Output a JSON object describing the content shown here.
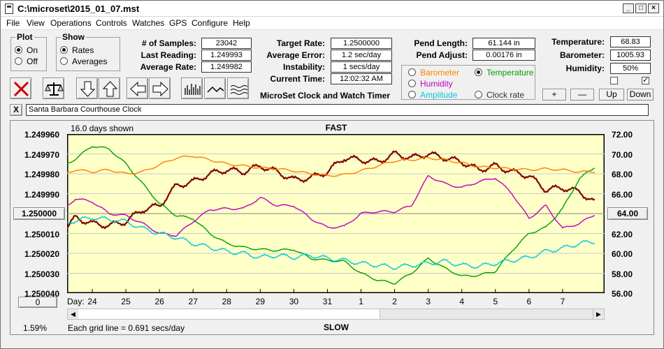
{
  "window": {
    "title": "C:\\microset\\2015_01_07.mst"
  },
  "menu": [
    "File",
    "View",
    "Operations",
    "Controls",
    "Watches",
    "GPS",
    "Configure",
    "Help"
  ],
  "plot_group": {
    "title": "Plot",
    "on": "On",
    "off": "Off",
    "selected": "On"
  },
  "show_group": {
    "title": "Show",
    "rates": "Rates",
    "averages": "Averages",
    "selected": "Rates"
  },
  "stats": {
    "samples_label": "# of Samples:",
    "samples": "23042",
    "last_label": "Last Reading:",
    "last": "1.249993",
    "avg_label": "Average Rate:",
    "avg": "1.249982",
    "target_label": "Target Rate:",
    "target": "1.2500000",
    "err_label": "Average Error:",
    "err": "1.2 sec/day",
    "inst_label": "Instability:",
    "inst": "1 secs/day",
    "time_label": "Current Time:",
    "time": "12:02:32 AM",
    "pend_len_label": "Pend Length:",
    "pend_len": "61.144 in",
    "pend_adj_label": "Pend Adjust:",
    "pend_adj": "0.00176 in",
    "temp_label": "Temperature:",
    "temp": "68.83",
    "baro_label": "Barometer:",
    "baro": "1005.93",
    "hum_label": "Humidity:",
    "hum": "50%"
  },
  "caption": "MicroSet Clock and Watch Timer",
  "sensors": {
    "barometer": "Barometer",
    "temperature": "Temperature",
    "humidity": "Humidity",
    "amplitude": "Amplitude",
    "clock_rate": "Clock rate",
    "selected": "Temperature",
    "barometer_color": "#ff8000",
    "temperature_color": "#00a000",
    "humidity_color": "#c000c0",
    "amplitude_color": "#00c8e0"
  },
  "adjust_buttons": {
    "plus": "+",
    "minus": "—",
    "up": "Up",
    "down": "Down"
  },
  "checkboxes": {
    "left": false,
    "right": true,
    "right_mark": "✓"
  },
  "clock": {
    "close": "X",
    "name": "Santa Barbara Courthouse Clock"
  },
  "chart_data": {
    "type": "line",
    "top_label": "FAST",
    "bottom_label": "SLOW",
    "days_shown": "16.0 days shown",
    "grid_note": "Each grid line = 0.691 secs/day",
    "percent": "1.59%",
    "left_button": "0",
    "center_left": "1.250000",
    "right_button": "64.00",
    "xlabel": "Day:",
    "days": [
      "24",
      "25",
      "26",
      "27",
      "28",
      "29",
      "30",
      "31",
      "1",
      "2",
      "3",
      "4",
      "5",
      "6",
      "7"
    ],
    "left_ticks": [
      "1.249960",
      "1.249970",
      "1.249980",
      "1.249990",
      "1.250000",
      "1.250010",
      "1.250020",
      "1.250030",
      "1.250040"
    ],
    "right_ticks": [
      "72.00",
      "70.00",
      "68.00",
      "66.00",
      "64.00",
      "62.00",
      "60.00",
      "58.00",
      "56.00"
    ],
    "y_left_range": [
      1.24996,
      1.25004
    ],
    "y_right_range": [
      56,
      72
    ],
    "x_range": [
      23.25,
      39.25
    ],
    "bg_color": "#ffffc8",
    "series": [
      {
        "name": "Rate",
        "axis": "left",
        "color": "#800000",
        "x": [
          23.0,
          23.5,
          24.0,
          24.5,
          25.0,
          25.5,
          26.0,
          26.5,
          27.0,
          27.5,
          28.0,
          28.5,
          29.0,
          29.5,
          30.0,
          30.5,
          31.0,
          31.5,
          32.0,
          32.5,
          33.0,
          33.5,
          34.0,
          34.5,
          35.0,
          35.5,
          36.0,
          36.5,
          37.0,
          37.5,
          38.0,
          38.5,
          39.0
        ],
        "y": [
          1.250012,
          1.250002,
          1.250005,
          1.250006,
          1.250004,
          1.249998,
          1.249996,
          1.249986,
          1.249984,
          1.24998,
          1.249978,
          1.249979,
          1.249976,
          1.249979,
          1.249983,
          1.249982,
          1.249979,
          1.249972,
          1.249973,
          1.249974,
          1.24997,
          1.249972,
          1.24997,
          1.249972,
          1.249974,
          1.249978,
          1.249976,
          1.249979,
          1.249981,
          1.249988,
          1.249987,
          1.249989,
          1.249995
        ]
      },
      {
        "name": "Temperature",
        "axis": "right",
        "color": "#00a000",
        "x": [
          23.0,
          23.5,
          24.0,
          24.5,
          25.0,
          25.5,
          26.0,
          26.5,
          27.0,
          27.5,
          28.0,
          28.5,
          29.0,
          29.5,
          30.0,
          30.5,
          31.0,
          31.5,
          32.0,
          32.5,
          33.0,
          33.5,
          34.0,
          34.5,
          35.0,
          35.5,
          36.0,
          36.5,
          37.0,
          37.5,
          38.0,
          38.5,
          39.0
        ],
        "y": [
          68.5,
          69.5,
          70.8,
          70.5,
          69.0,
          67.0,
          65.0,
          63.8,
          63.5,
          62.0,
          61.0,
          60.6,
          60.4,
          60.3,
          60.4,
          59.5,
          59.3,
          59.2,
          58.0,
          57.3,
          57.0,
          58.0,
          59.5,
          58.5,
          57.7,
          57.8,
          58.2,
          60.3,
          62.0,
          62.6,
          64.5,
          67.5,
          68.8
        ]
      },
      {
        "name": "Humidity",
        "axis": "right",
        "color": "#c000c0",
        "x": [
          23.0,
          23.5,
          24.0,
          24.5,
          25.0,
          25.5,
          26.0,
          26.5,
          27.0,
          27.5,
          28.0,
          28.5,
          29.0,
          29.5,
          30.0,
          30.5,
          31.0,
          31.5,
          32.0,
          32.5,
          33.0,
          33.5,
          34.0,
          34.5,
          35.0,
          35.5,
          36.0,
          36.5,
          37.0,
          37.5,
          38.0,
          38.5,
          39.0
        ],
        "y": [
          64.0,
          65.5,
          65.2,
          64.0,
          63.8,
          63.0,
          62.0,
          61.8,
          63.2,
          64.4,
          64.5,
          64.5,
          65.6,
          64.8,
          64.8,
          63.5,
          62.6,
          62.7,
          64.0,
          64.2,
          64.2,
          64.8,
          67.8,
          67.0,
          66.6,
          67.2,
          67.6,
          66.0,
          63.5,
          64.8,
          62.5,
          63.0,
          64.0
        ]
      },
      {
        "name": "Amplitude",
        "axis": "right",
        "color": "#00c8e0",
        "x": [
          23.0,
          23.5,
          24.0,
          24.5,
          25.0,
          25.5,
          26.0,
          26.5,
          27.0,
          27.5,
          28.0,
          28.5,
          29.0,
          29.5,
          30.0,
          30.5,
          31.0,
          31.5,
          32.0,
          32.5,
          33.0,
          33.5,
          34.0,
          34.5,
          35.0,
          35.5,
          36.0,
          36.5,
          37.0,
          37.5,
          38.0,
          38.5,
          39.0
        ],
        "y": [
          62.8,
          63.3,
          63.6,
          63.4,
          63.2,
          62.5,
          62.0,
          61.6,
          61.0,
          60.6,
          60.2,
          60.0,
          59.6,
          59.8,
          59.6,
          59.8,
          59.5,
          59.3,
          59.0,
          58.8,
          58.6,
          58.8,
          59.0,
          59.2,
          58.8,
          58.7,
          59.0,
          59.3,
          59.6,
          60.2,
          60.5,
          61.0,
          61.2
        ]
      },
      {
        "name": "Barometer",
        "axis": "right",
        "color": "#ff8000",
        "x": [
          23.0,
          23.5,
          24.0,
          24.5,
          25.0,
          25.5,
          26.0,
          26.5,
          27.0,
          27.5,
          28.0,
          28.5,
          29.0,
          29.5,
          30.0,
          30.5,
          31.0,
          31.5,
          32.0,
          32.5,
          33.0,
          33.5,
          34.0,
          34.5,
          35.0,
          35.5,
          36.0,
          36.5,
          37.0,
          37.5,
          38.0,
          38.5,
          39.0
        ],
        "y": [
          67.8,
          68.4,
          68.2,
          68.4,
          68.0,
          68.2,
          68.9,
          69.6,
          69.8,
          69.4,
          69.0,
          68.8,
          68.6,
          68.5,
          68.3,
          68.0,
          67.8,
          67.9,
          68.3,
          68.8,
          69.3,
          69.4,
          69.6,
          69.4,
          69.1,
          68.7,
          68.6,
          68.5,
          68.4,
          68.5,
          68.4,
          68.2,
          68.2
        ]
      }
    ]
  }
}
